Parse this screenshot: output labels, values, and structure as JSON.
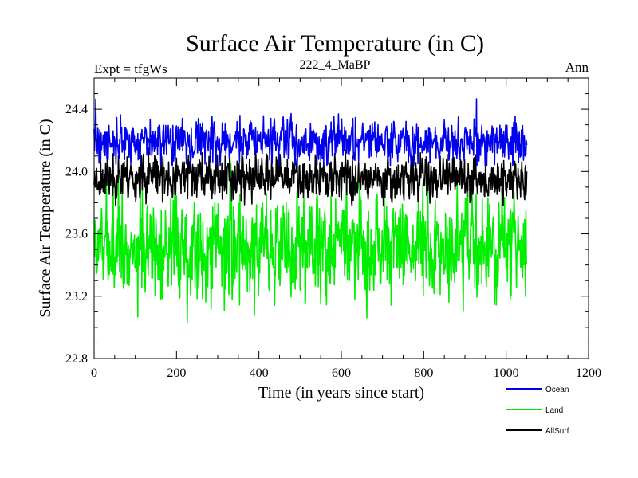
{
  "chart_data": {
    "type": "line",
    "title": "Surface Air Temperature (in C)",
    "subtitle_left": "Expt = tfgWs",
    "subtitle_center": "222_4_MaBP",
    "subtitle_right": "Ann",
    "xlabel": "Time (in years since start)",
    "ylabel": "Surface Air Temperature (in C)",
    "xlim": [
      0,
      1200
    ],
    "ylim": [
      22.8,
      24.6
    ],
    "xticks": [
      0,
      200,
      400,
      600,
      800,
      1000,
      1200
    ],
    "xtick_labels": [
      "0",
      "200",
      "400",
      "600",
      "800",
      "1000",
      "1200"
    ],
    "yticks": [
      22.8,
      23.2,
      23.6,
      24.0,
      24.4
    ],
    "ytick_labels": [
      "22.8",
      "23.2",
      "23.6",
      "24.0",
      "24.4"
    ],
    "n_years": 1050,
    "series": [
      {
        "name": "Land",
        "color": "#00ee00",
        "mean": 23.52,
        "amplitude": 0.17,
        "min": 23.03,
        "max": 24.05,
        "seed": 7
      },
      {
        "name": "AllSurf",
        "color": "#000000",
        "mean": 23.96,
        "amplitude": 0.07,
        "min": 23.78,
        "max": 24.15,
        "seed": 23
      },
      {
        "name": "Ocean",
        "color": "#0000ee",
        "mean": 24.19,
        "amplitude": 0.065,
        "min": 24.04,
        "max": 24.55,
        "seed": 41
      }
    ],
    "legend": [
      {
        "label": "Ocean",
        "color": "#0000ee"
      },
      {
        "label": "Land",
        "color": "#00ee00"
      },
      {
        "label": "AllSurf",
        "color": "#000000"
      }
    ],
    "legend_position": "bottom-right"
  }
}
